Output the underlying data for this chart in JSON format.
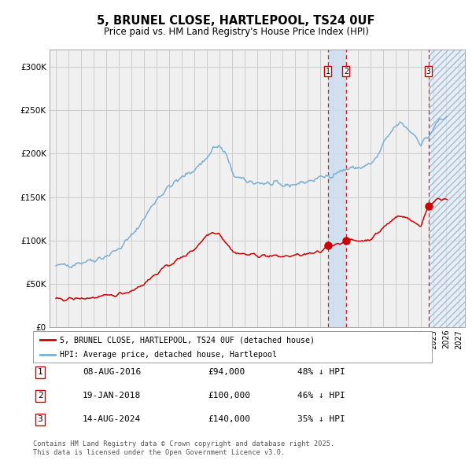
{
  "title": "5, BRUNEL CLOSE, HARTLEPOOL, TS24 0UF",
  "subtitle": "Price paid vs. HM Land Registry's House Price Index (HPI)",
  "legend_red": "5, BRUNEL CLOSE, HARTLEPOOL, TS24 0UF (detached house)",
  "legend_blue": "HPI: Average price, detached house, Hartlepool",
  "transactions": [
    {
      "label": "1",
      "date": "08-AUG-2016",
      "price": 94000,
      "pct": "48% ↓ HPI",
      "x_year": 2016.6
    },
    {
      "label": "2",
      "date": "19-JAN-2018",
      "price": 100000,
      "pct": "46% ↓ HPI",
      "x_year": 2018.05
    },
    {
      "label": "3",
      "date": "14-AUG-2024",
      "price": 140000,
      "pct": "35% ↓ HPI",
      "x_year": 2024.6
    }
  ],
  "footnote1": "Contains HM Land Registry data © Crown copyright and database right 2025.",
  "footnote2": "This data is licensed under the Open Government Licence v3.0.",
  "background_color": "#ffffff",
  "plot_bg_color": "#f0f0f0",
  "grid_color": "#cccccc",
  "red_color": "#cc0000",
  "blue_color": "#7aafd4",
  "ylim": [
    0,
    320000
  ],
  "xlim_start": 1994.5,
  "xlim_end": 2027.5
}
